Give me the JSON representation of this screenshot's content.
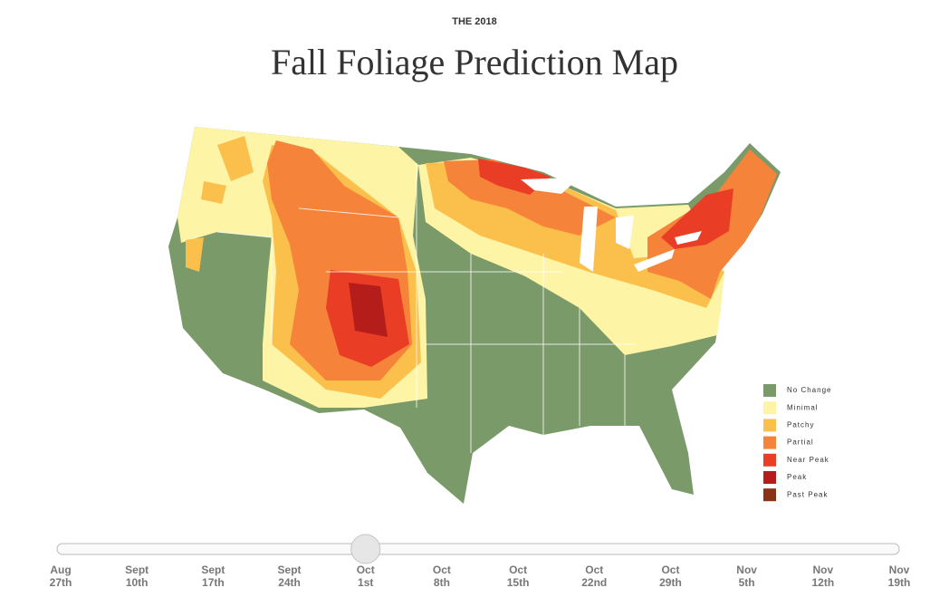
{
  "header": {
    "kicker": "THE 2018",
    "title": "Fall Foliage Prediction Map"
  },
  "legend": {
    "items": [
      {
        "label": "No Change",
        "color": "#7b9a6a"
      },
      {
        "label": "Minimal",
        "color": "#fdf4a6"
      },
      {
        "label": "Patchy",
        "color": "#fbbf4c"
      },
      {
        "label": "Partial",
        "color": "#f5833a"
      },
      {
        "label": "Near Peak",
        "color": "#e93d26"
      },
      {
        "label": "Peak",
        "color": "#b51d1b"
      },
      {
        "label": "Past Peak",
        "color": "#8a3216"
      }
    ]
  },
  "slider": {
    "selected": 4,
    "labels": [
      [
        "Aug",
        "27th"
      ],
      [
        "Sept",
        "10th"
      ],
      [
        "Sept",
        "17th"
      ],
      [
        "Sept",
        "24th"
      ],
      [
        "Oct",
        "1st"
      ],
      [
        "Oct",
        "8th"
      ],
      [
        "Oct",
        "15th"
      ],
      [
        "Oct",
        "22nd"
      ],
      [
        "Oct",
        "29th"
      ],
      [
        "Nov",
        "5th"
      ],
      [
        "Nov",
        "12th"
      ],
      [
        "Nov",
        "19th"
      ]
    ]
  }
}
